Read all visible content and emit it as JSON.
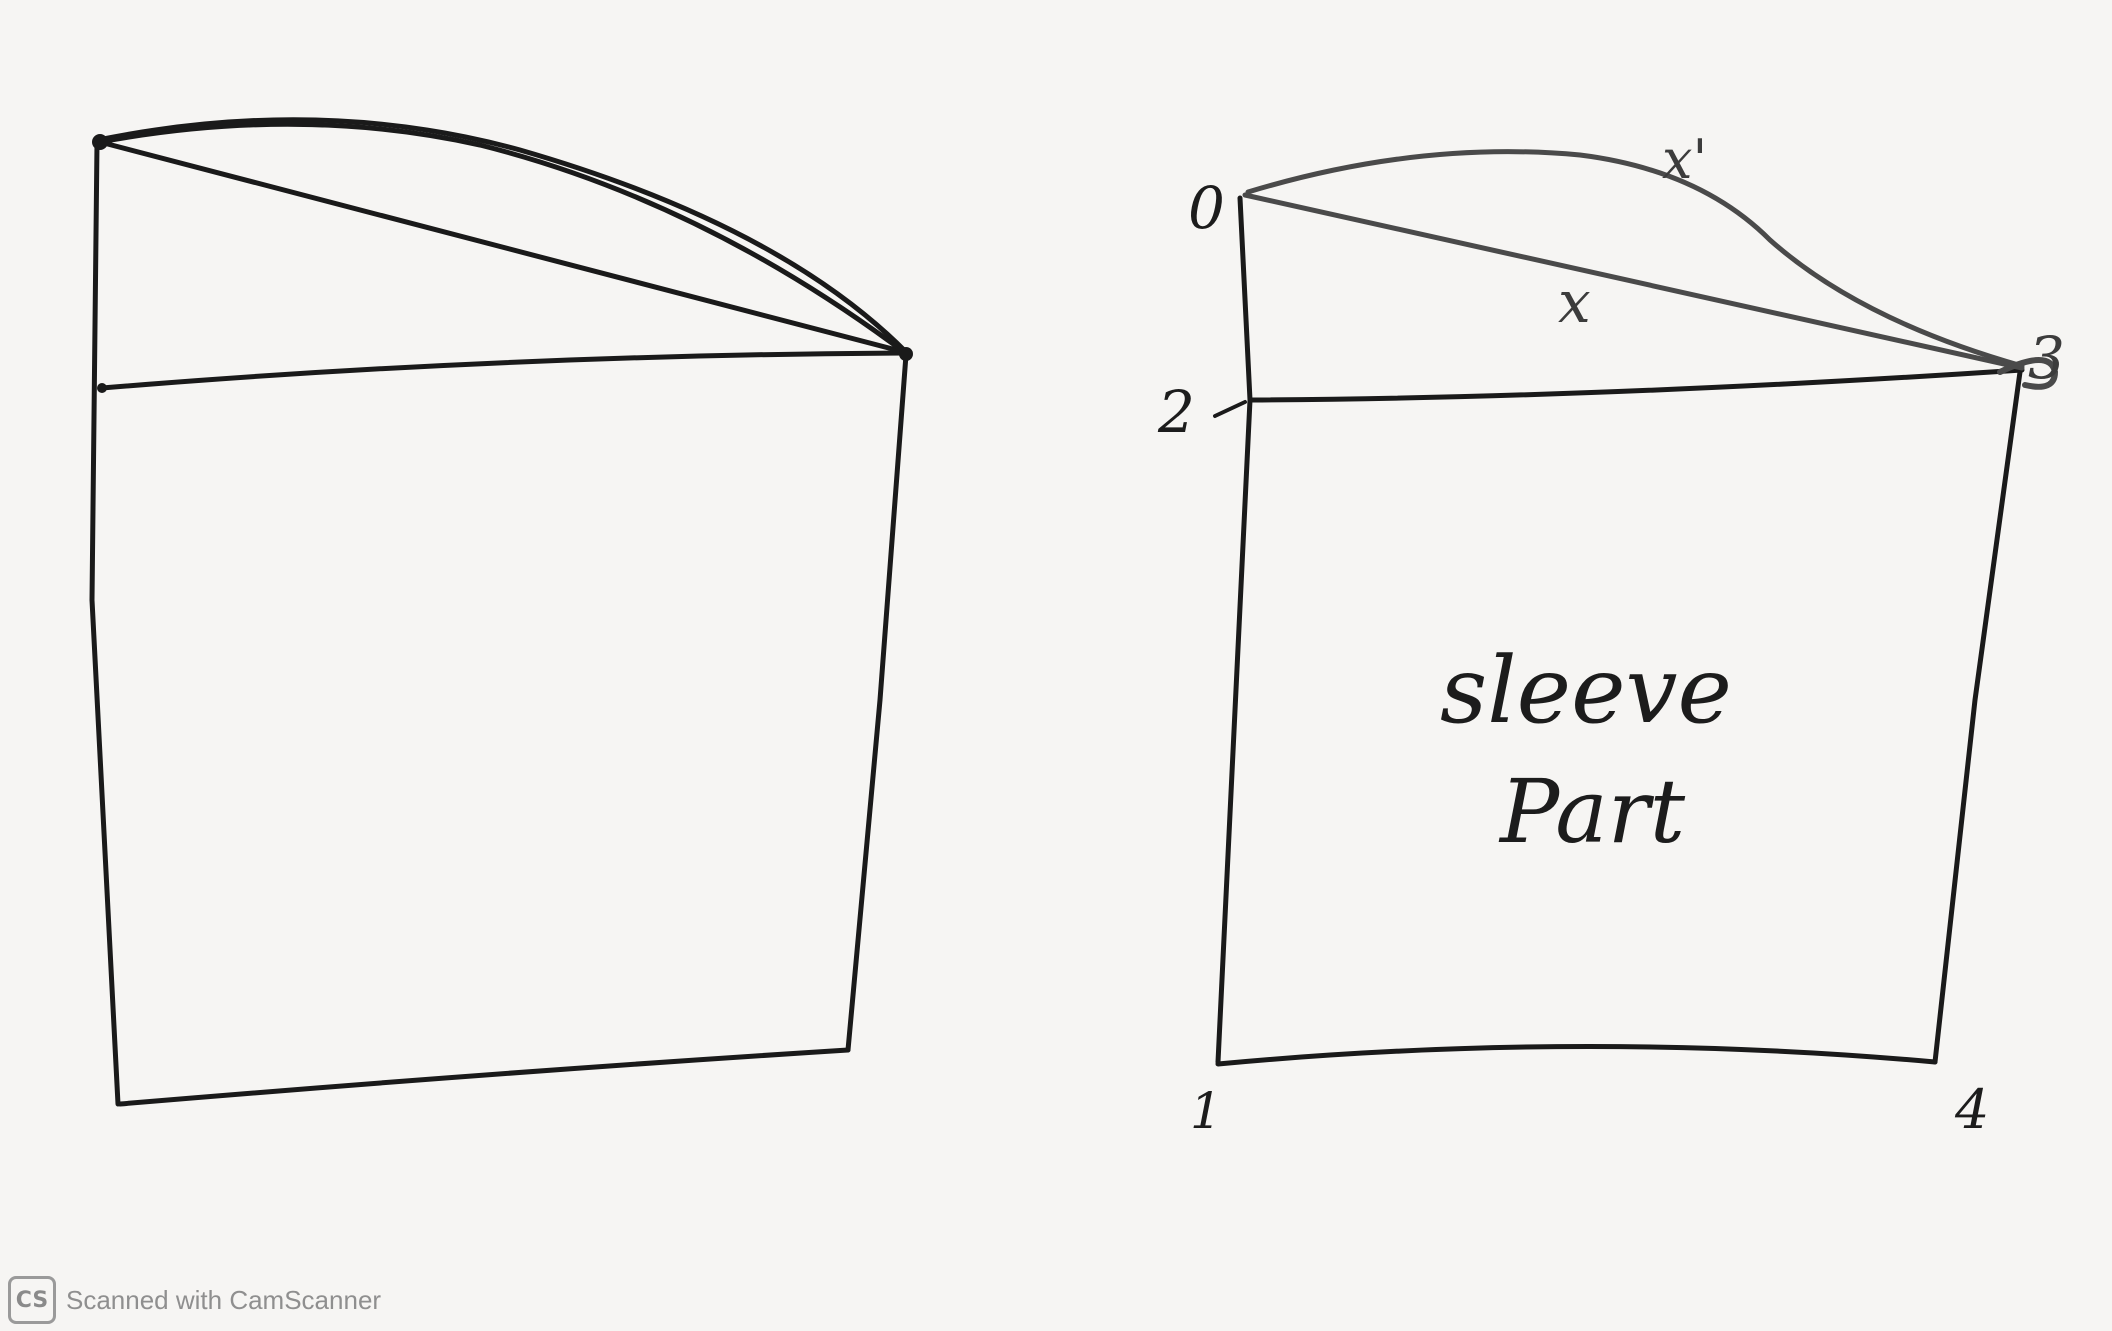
{
  "labels": {
    "point_0": "0",
    "point_1": "1",
    "point_2": "2",
    "point_3": "3",
    "point_4": "4",
    "chord": "x",
    "curve": "x'",
    "sleeve_line1": "sleeve",
    "sleeve_line2": "Part"
  },
  "watermark": {
    "logo": "CS",
    "text": "Scanned with CamScanner"
  }
}
